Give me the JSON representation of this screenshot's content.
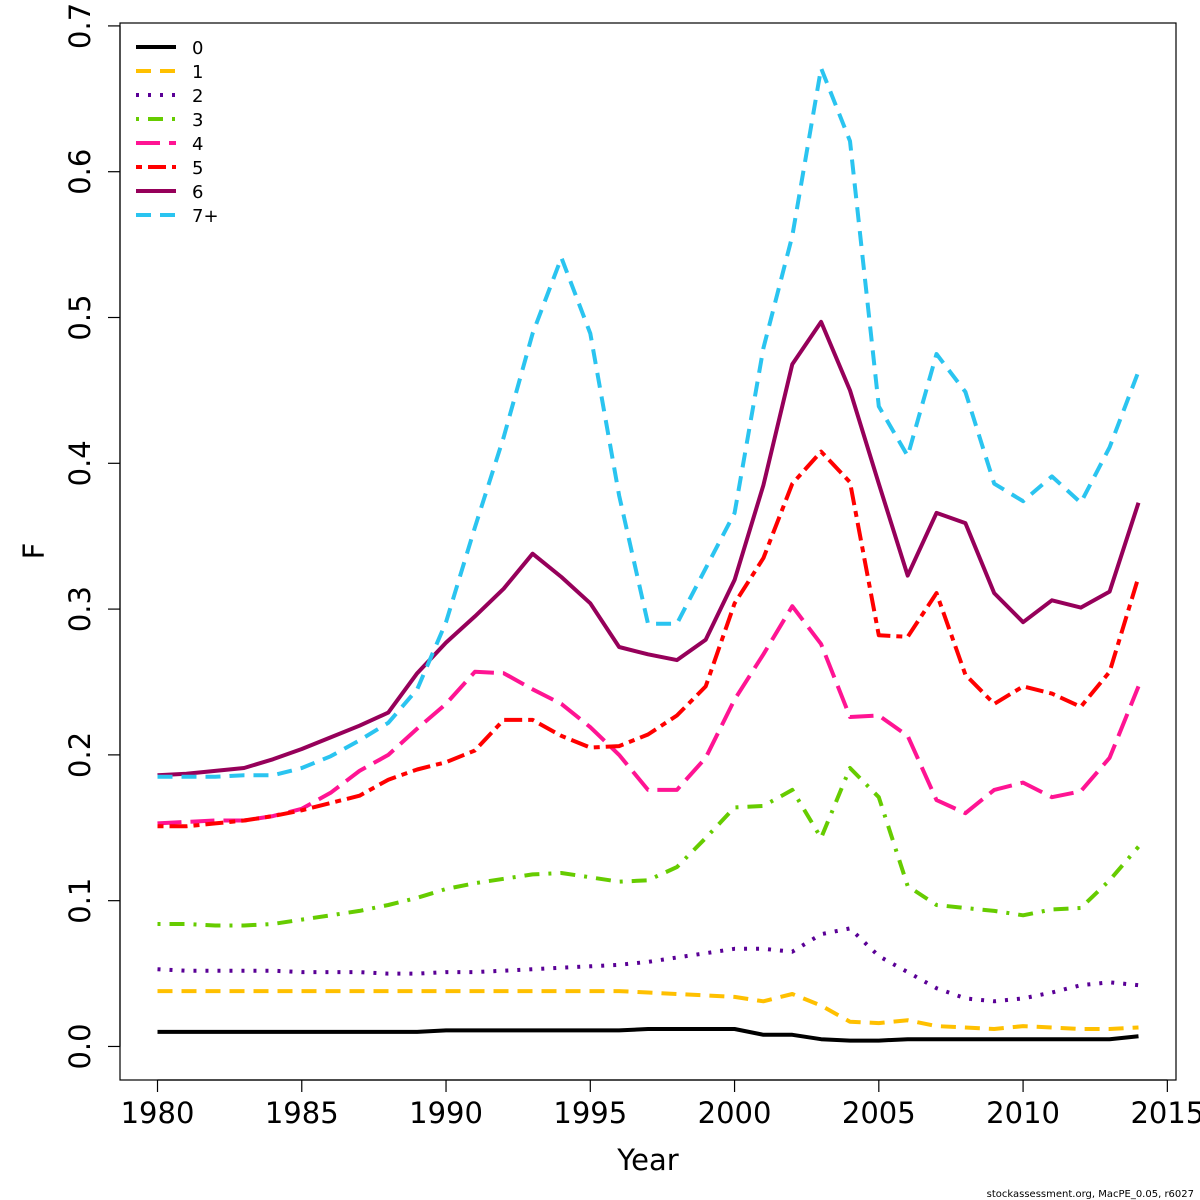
{
  "chart_data": {
    "type": "line",
    "xlabel": "Year",
    "ylabel": "F",
    "xlim": [
      1978.7,
      2015.3
    ],
    "ylim": [
      -0.023,
      0.702
    ],
    "xticks": [
      1980,
      1985,
      1990,
      1995,
      2000,
      2005,
      2010,
      2015
    ],
    "yticks": [
      0.0,
      0.1,
      0.2,
      0.3,
      0.4,
      0.5,
      0.6,
      0.7
    ],
    "ytick_labels": [
      "0.0",
      "0.1",
      "0.2",
      "0.3",
      "0.4",
      "0.5",
      "0.6",
      "0.7"
    ],
    "grid": false,
    "legend_position": "top-left",
    "credit": "stockassessment.org, MacPE_0.05, r6027",
    "x": [
      1980,
      1981,
      1982,
      1983,
      1984,
      1985,
      1986,
      1987,
      1988,
      1989,
      1990,
      1991,
      1992,
      1993,
      1994,
      1995,
      1996,
      1997,
      1998,
      1999,
      2000,
      2001,
      2002,
      2003,
      2004,
      2005,
      2006,
      2007,
      2008,
      2009,
      2010,
      2011,
      2012,
      2013,
      2014
    ],
    "series": [
      {
        "name": "0",
        "color": "#000000",
        "dash": "solid",
        "values": [
          0.01,
          0.01,
          0.01,
          0.01,
          0.01,
          0.01,
          0.01,
          0.01,
          0.01,
          0.01,
          0.011,
          0.011,
          0.011,
          0.011,
          0.011,
          0.011,
          0.011,
          0.012,
          0.012,
          0.012,
          0.012,
          0.008,
          0.008,
          0.005,
          0.004,
          0.004,
          0.005,
          0.005,
          0.005,
          0.005,
          0.005,
          0.005,
          0.005,
          0.005,
          0.007
        ]
      },
      {
        "name": "1",
        "color": "#FFC000",
        "dash": "dashed",
        "values": [
          0.038,
          0.038,
          0.038,
          0.038,
          0.038,
          0.038,
          0.038,
          0.038,
          0.038,
          0.038,
          0.038,
          0.038,
          0.038,
          0.038,
          0.038,
          0.038,
          0.038,
          0.037,
          0.036,
          0.035,
          0.034,
          0.031,
          0.036,
          0.028,
          0.017,
          0.016,
          0.018,
          0.014,
          0.013,
          0.012,
          0.014,
          0.013,
          0.012,
          0.012,
          0.013
        ]
      },
      {
        "name": "2",
        "color": "#5A0096",
        "dash": "dotted",
        "values": [
          0.053,
          0.052,
          0.052,
          0.052,
          0.052,
          0.051,
          0.051,
          0.051,
          0.05,
          0.05,
          0.051,
          0.051,
          0.052,
          0.053,
          0.054,
          0.055,
          0.056,
          0.058,
          0.061,
          0.064,
          0.067,
          0.067,
          0.065,
          0.077,
          0.081,
          0.062,
          0.051,
          0.04,
          0.033,
          0.031,
          0.033,
          0.037,
          0.042,
          0.044,
          0.042
        ]
      },
      {
        "name": "3",
        "color": "#66CC00",
        "dash": "dotdash",
        "values": [
          0.084,
          0.084,
          0.083,
          0.083,
          0.084,
          0.087,
          0.09,
          0.093,
          0.097,
          0.102,
          0.108,
          0.112,
          0.115,
          0.118,
          0.119,
          0.116,
          0.113,
          0.114,
          0.123,
          0.143,
          0.164,
          0.165,
          0.176,
          0.143,
          0.191,
          0.171,
          0.11,
          0.097,
          0.095,
          0.093,
          0.09,
          0.094,
          0.095,
          0.114,
          0.137
        ]
      },
      {
        "name": "4",
        "color": "#FF1493",
        "dash": "longdash",
        "values": [
          0.153,
          0.154,
          0.155,
          0.155,
          0.158,
          0.163,
          0.174,
          0.189,
          0.2,
          0.218,
          0.235,
          0.257,
          0.256,
          0.245,
          0.235,
          0.219,
          0.2,
          0.176,
          0.176,
          0.198,
          0.238,
          0.269,
          0.302,
          0.276,
          0.226,
          0.227,
          0.213,
          0.169,
          0.16,
          0.176,
          0.181,
          0.171,
          0.175,
          0.198,
          0.247
        ]
      },
      {
        "name": "5",
        "color": "#FF0000",
        "dash": "twodash",
        "values": [
          0.151,
          0.151,
          0.153,
          0.155,
          0.158,
          0.162,
          0.167,
          0.172,
          0.183,
          0.19,
          0.195,
          0.203,
          0.224,
          0.224,
          0.213,
          0.205,
          0.206,
          0.214,
          0.227,
          0.247,
          0.304,
          0.335,
          0.386,
          0.408,
          0.387,
          0.282,
          0.281,
          0.311,
          0.255,
          0.235,
          0.247,
          0.242,
          0.233,
          0.257,
          0.322
        ]
      },
      {
        "name": "6",
        "color": "#96005A",
        "dash": "solid",
        "values": [
          0.186,
          0.187,
          0.189,
          0.191,
          0.197,
          0.204,
          0.212,
          0.22,
          0.229,
          0.256,
          0.277,
          0.295,
          0.314,
          0.338,
          0.322,
          0.304,
          0.274,
          0.269,
          0.265,
          0.279,
          0.32,
          0.385,
          0.468,
          0.497,
          0.45,
          0.386,
          0.323,
          0.366,
          0.359,
          0.311,
          0.291,
          0.306,
          0.301,
          0.312,
          0.373
        ]
      },
      {
        "name": "7+",
        "color": "#2AC4F0",
        "dash": "dashed",
        "values": [
          0.185,
          0.185,
          0.185,
          0.186,
          0.186,
          0.191,
          0.199,
          0.21,
          0.222,
          0.245,
          0.291,
          0.356,
          0.418,
          0.489,
          0.541,
          0.489,
          0.378,
          0.29,
          0.29,
          0.328,
          0.366,
          0.479,
          0.556,
          0.671,
          0.621,
          0.439,
          0.405,
          0.475,
          0.449,
          0.386,
          0.374,
          0.391,
          0.373,
          0.411,
          0.463
        ]
      }
    ]
  }
}
